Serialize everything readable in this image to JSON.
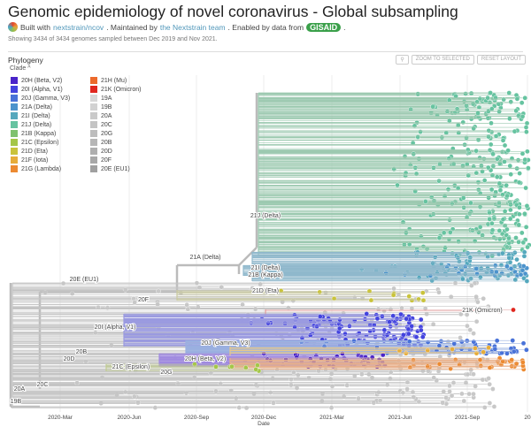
{
  "header": {
    "title": "Genomic epidemiology of novel coronavirus - Global subsampling",
    "built_with": "Built with",
    "repo_link": "nextstrain/ncov",
    "maintained": ". Maintained by",
    "team_link": "the Nextstrain team",
    "enabled": ". Enabled by data from",
    "gisaid": "GISAID",
    "period": ".",
    "showing": "Showing 3434 of 3434 genomes sampled between Dec 2019 and Nov 2021."
  },
  "panel": {
    "title": "Phylogeny",
    "legend_title": "Clade",
    "legend_toggle_icon": "chevron-up-icon",
    "search_icon": "magnifier-icon",
    "zoom_selected": "ZOOM TO SELECTED",
    "reset_layout": "RESET LAYOUT"
  },
  "legend": [
    {
      "label": "20H (Beta, V2)",
      "color": "#4a24c9"
    },
    {
      "label": "21H (Mu)",
      "color": "#ec6a2c"
    },
    {
      "label": "20I (Alpha, V1)",
      "color": "#4343de"
    },
    {
      "label": "21K (Omicron)",
      "color": "#e0271f"
    },
    {
      "label": "20J (Gamma, V3)",
      "color": "#4872d8"
    },
    {
      "label": "19A",
      "color": "#d8d8d8"
    },
    {
      "label": "21A (Delta)",
      "color": "#4c93cc"
    },
    {
      "label": "19B",
      "color": "#d2d2d2"
    },
    {
      "label": "21I (Delta)",
      "color": "#55a8bd"
    },
    {
      "label": "20A",
      "color": "#cacaca"
    },
    {
      "label": "21J (Delta)",
      "color": "#66c3a0"
    },
    {
      "label": "20C",
      "color": "#c4c4c4"
    },
    {
      "label": "21B (Kappa)",
      "color": "#7fc16e"
    },
    {
      "label": "20G",
      "color": "#bdbdbd"
    },
    {
      "label": "21C (Epsilon)",
      "color": "#a4c648"
    },
    {
      "label": "20B",
      "color": "#b6b6b6"
    },
    {
      "label": "21D (Eta)",
      "color": "#c9c33b"
    },
    {
      "label": "20D",
      "color": "#afafaf"
    },
    {
      "label": "21F (Iota)",
      "color": "#e6ac3a"
    },
    {
      "label": "20F",
      "color": "#a8a8a8"
    },
    {
      "label": "21G (Lambda)",
      "color": "#ec8a31"
    },
    {
      "label": "20E (EU1)",
      "color": "#a0a0a0"
    }
  ],
  "branch_labels": [
    "21J (Delta)",
    "21A (Delta)",
    "21I (Delta)",
    "21B (Kappa)",
    "20E (EU1)",
    "20F",
    "21D (Eta)",
    "21K (Omicron)",
    "20I (Alpha, V1)",
    "20J (Gamma, V3)",
    "20B",
    "20D",
    "20H (Beta, V2)",
    "21C (Epsilon)",
    "20G",
    "20A",
    "20C",
    "19B"
  ],
  "x_axis": {
    "label": "Date",
    "ticks": [
      "2020-Mar",
      "2020-Jun",
      "2020-Sep",
      "2020-Dec",
      "2021-Mar",
      "2021-Jun",
      "2021-Sep",
      "20"
    ]
  }
}
